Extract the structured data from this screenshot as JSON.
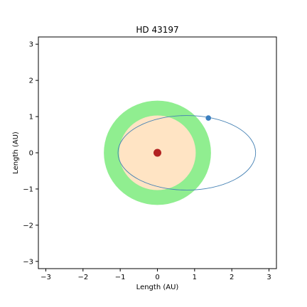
{
  "chart_data": {
    "type": "scatter",
    "title": "HD 43197",
    "xlabel": "Length (AU)",
    "ylabel": "Length (AU)",
    "xlim": [
      -3.2,
      3.2
    ],
    "ylim": [
      -3.2,
      3.2
    ],
    "xticks": [
      -3,
      -2,
      -1,
      0,
      1,
      2,
      3
    ],
    "yticks": [
      -3,
      -2,
      -1,
      0,
      1,
      2,
      3
    ],
    "tick_labels": [
      "−3",
      "−2",
      "−1",
      "0",
      "1",
      "2",
      "3"
    ],
    "grid": false,
    "habitable_zone": {
      "center": [
        0,
        0
      ],
      "outer_radius": 1.44,
      "color": "#90ee90"
    },
    "inner_zone": {
      "center": [
        0,
        0
      ],
      "outer_radius": 1.03,
      "color": "#ffe4c4"
    },
    "star": {
      "x": 0,
      "y": 0,
      "color": "#b22222"
    },
    "orbit": {
      "center_x": 0.79,
      "center_y": 0,
      "semi_major": 1.85,
      "semi_minor": 1.03,
      "color": "#4682b4"
    },
    "planet": {
      "x": 1.37,
      "y": 0.96,
      "color": "#3a7ebf"
    }
  }
}
